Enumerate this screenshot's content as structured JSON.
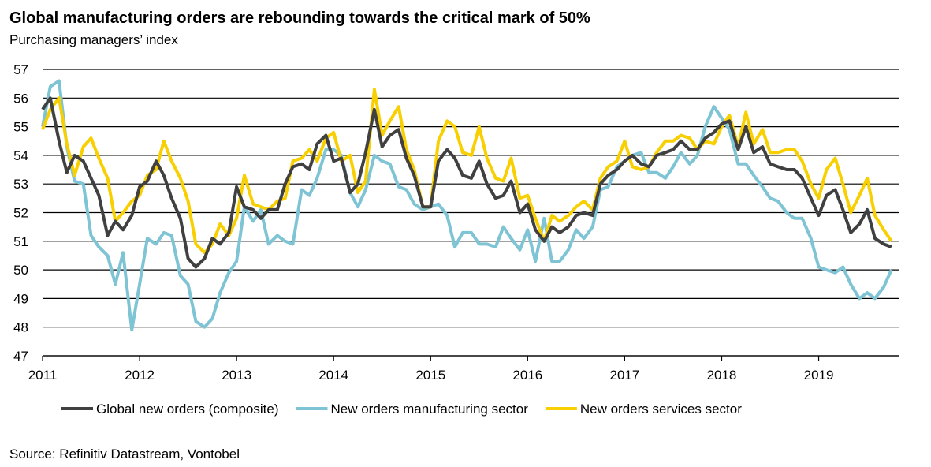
{
  "chart_data": {
    "type": "line",
    "title": "Global manufacturing orders are rebounding towards the critical mark of 50%",
    "subtitle": "Purchasing managers’ index",
    "source": "Source: Refinitiv Datastream, Vontobel",
    "x": [
      2011,
      2011.08,
      2011.17,
      2011.25,
      2011.33,
      2011.42,
      2011.5,
      2011.58,
      2011.67,
      2011.75,
      2011.83,
      2011.92,
      2012,
      2012.08,
      2012.17,
      2012.25,
      2012.33,
      2012.42,
      2012.5,
      2012.58,
      2012.67,
      2012.75,
      2012.83,
      2012.92,
      2013,
      2013.08,
      2013.17,
      2013.25,
      2013.33,
      2013.42,
      2013.5,
      2013.58,
      2013.67,
      2013.75,
      2013.83,
      2013.92,
      2014,
      2014.08,
      2014.17,
      2014.25,
      2014.33,
      2014.42,
      2014.5,
      2014.58,
      2014.67,
      2014.75,
      2014.83,
      2014.92,
      2015,
      2015.08,
      2015.17,
      2015.25,
      2015.33,
      2015.42,
      2015.5,
      2015.58,
      2015.67,
      2015.75,
      2015.83,
      2015.92,
      2016,
      2016.08,
      2016.17,
      2016.25,
      2016.33,
      2016.42,
      2016.5,
      2016.58,
      2016.67,
      2016.75,
      2016.83,
      2016.92,
      2017,
      2017.08,
      2017.17,
      2017.25,
      2017.33,
      2017.42,
      2017.5,
      2017.58,
      2017.67,
      2017.75,
      2017.83,
      2017.92,
      2018,
      2018.08,
      2018.17,
      2018.25,
      2018.33,
      2018.42,
      2018.5,
      2018.58,
      2018.67,
      2018.75,
      2018.83,
      2018.92,
      2019,
      2019.08,
      2019.17,
      2019.25,
      2019.33,
      2019.42,
      2019.5,
      2019.58,
      2019.67,
      2019.75
    ],
    "series": [
      {
        "name": "Global new orders (composite)",
        "color": "#404040",
        "values": [
          55.6,
          56.0,
          54.5,
          53.4,
          54.0,
          53.8,
          53.2,
          52.6,
          51.2,
          51.7,
          51.4,
          51.9,
          52.9,
          53.1,
          53.8,
          53.3,
          52.5,
          51.8,
          50.4,
          50.1,
          50.4,
          51.1,
          50.9,
          51.3,
          52.9,
          52.2,
          52.1,
          51.8,
          52.1,
          52.1,
          53.0,
          53.6,
          53.7,
          53.5,
          54.4,
          54.7,
          53.8,
          53.9,
          52.7,
          53.0,
          54.1,
          55.6,
          54.3,
          54.7,
          54.9,
          53.9,
          53.3,
          52.2,
          52.2,
          53.8,
          54.2,
          53.9,
          53.3,
          53.2,
          53.8,
          53.0,
          52.5,
          52.6,
          53.1,
          52.0,
          52.3,
          51.4,
          51.0,
          51.5,
          51.3,
          51.5,
          51.9,
          52.0,
          51.9,
          53.0,
          53.3,
          53.5,
          53.8,
          54.0,
          53.7,
          53.6,
          54.0,
          54.1,
          54.2,
          54.5,
          54.2,
          54.2,
          54.6,
          54.8,
          55.1,
          55.2,
          54.2,
          55.0,
          54.1,
          54.3,
          53.7,
          53.6,
          53.5,
          53.5,
          53.2,
          52.5,
          51.9,
          52.6,
          52.8,
          52.1,
          51.3,
          51.6,
          52.1,
          51.1,
          50.9,
          50.8
        ]
      },
      {
        "name": "New orders manufacturing sector",
        "color": "#7fc4d4",
        "values": [
          55.0,
          56.4,
          56.6,
          54.3,
          53.1,
          53.0,
          51.2,
          50.8,
          50.5,
          49.5,
          50.6,
          47.9,
          49.5,
          51.1,
          50.9,
          51.3,
          51.2,
          49.8,
          49.5,
          48.2,
          48.0,
          48.3,
          49.2,
          49.9,
          50.3,
          52.2,
          51.7,
          52.1,
          50.9,
          51.2,
          51.0,
          50.9,
          52.8,
          52.6,
          53.2,
          54.2,
          54.2,
          54.0,
          52.7,
          52.2,
          52.8,
          54.0,
          53.8,
          53.7,
          52.9,
          52.8,
          52.3,
          52.1,
          52.2,
          52.3,
          51.9,
          50.8,
          51.3,
          51.3,
          50.9,
          50.9,
          50.8,
          51.5,
          51.1,
          50.7,
          51.4,
          50.3,
          51.8,
          50.3,
          50.3,
          50.7,
          51.4,
          51.1,
          51.5,
          52.8,
          52.9,
          53.6,
          53.8,
          54.0,
          54.1,
          53.4,
          53.4,
          53.2,
          53.6,
          54.1,
          53.7,
          54.0,
          55.0,
          55.7,
          55.3,
          54.9,
          53.7,
          53.7,
          53.3,
          52.9,
          52.5,
          52.4,
          52.0,
          51.8,
          51.8,
          51.1,
          50.1,
          50.0,
          49.9,
          50.1,
          49.5,
          49.0,
          49.2,
          49.0,
          49.4,
          50.0
        ]
      },
      {
        "name": "New orders services sector",
        "color": "#f8cf00",
        "values": [
          54.9,
          55.6,
          56.0,
          54.4,
          53.3,
          54.3,
          54.6,
          53.9,
          53.2,
          51.7,
          52.0,
          52.4,
          52.6,
          53.3,
          53.5,
          54.5,
          53.8,
          53.2,
          52.4,
          50.9,
          50.6,
          50.9,
          51.6,
          51.2,
          51.8,
          53.3,
          52.3,
          52.2,
          52.1,
          52.4,
          52.5,
          53.8,
          53.9,
          54.2,
          53.8,
          54.6,
          54.8,
          53.8,
          54.0,
          52.7,
          53.1,
          56.3,
          54.7,
          55.2,
          55.7,
          54.2,
          53.5,
          52.2,
          52.2,
          54.5,
          55.2,
          55.0,
          54.1,
          54.0,
          55.0,
          53.9,
          53.2,
          53.1,
          53.9,
          52.5,
          52.6,
          51.8,
          51.0,
          51.9,
          51.7,
          51.9,
          52.2,
          52.4,
          52.1,
          53.2,
          53.6,
          53.8,
          54.5,
          53.6,
          53.5,
          53.6,
          54.1,
          54.5,
          54.5,
          54.7,
          54.6,
          54.2,
          54.5,
          54.4,
          55.0,
          55.4,
          54.3,
          55.5,
          54.4,
          54.9,
          54.1,
          54.1,
          54.2,
          54.2,
          53.8,
          53.0,
          52.5,
          53.5,
          53.9,
          53.0,
          52.0,
          52.6,
          53.2,
          51.9,
          51.4,
          51.0
        ]
      }
    ],
    "xlim": [
      2011,
      2019.8
    ],
    "xticks": [
      2011,
      2012,
      2013,
      2014,
      2015,
      2016,
      2017,
      2018,
      2019
    ],
    "ylim": [
      47,
      57
    ],
    "yticks": [
      47,
      48,
      49,
      50,
      51,
      52,
      53,
      54,
      55,
      56,
      57
    ],
    "grid": true
  }
}
